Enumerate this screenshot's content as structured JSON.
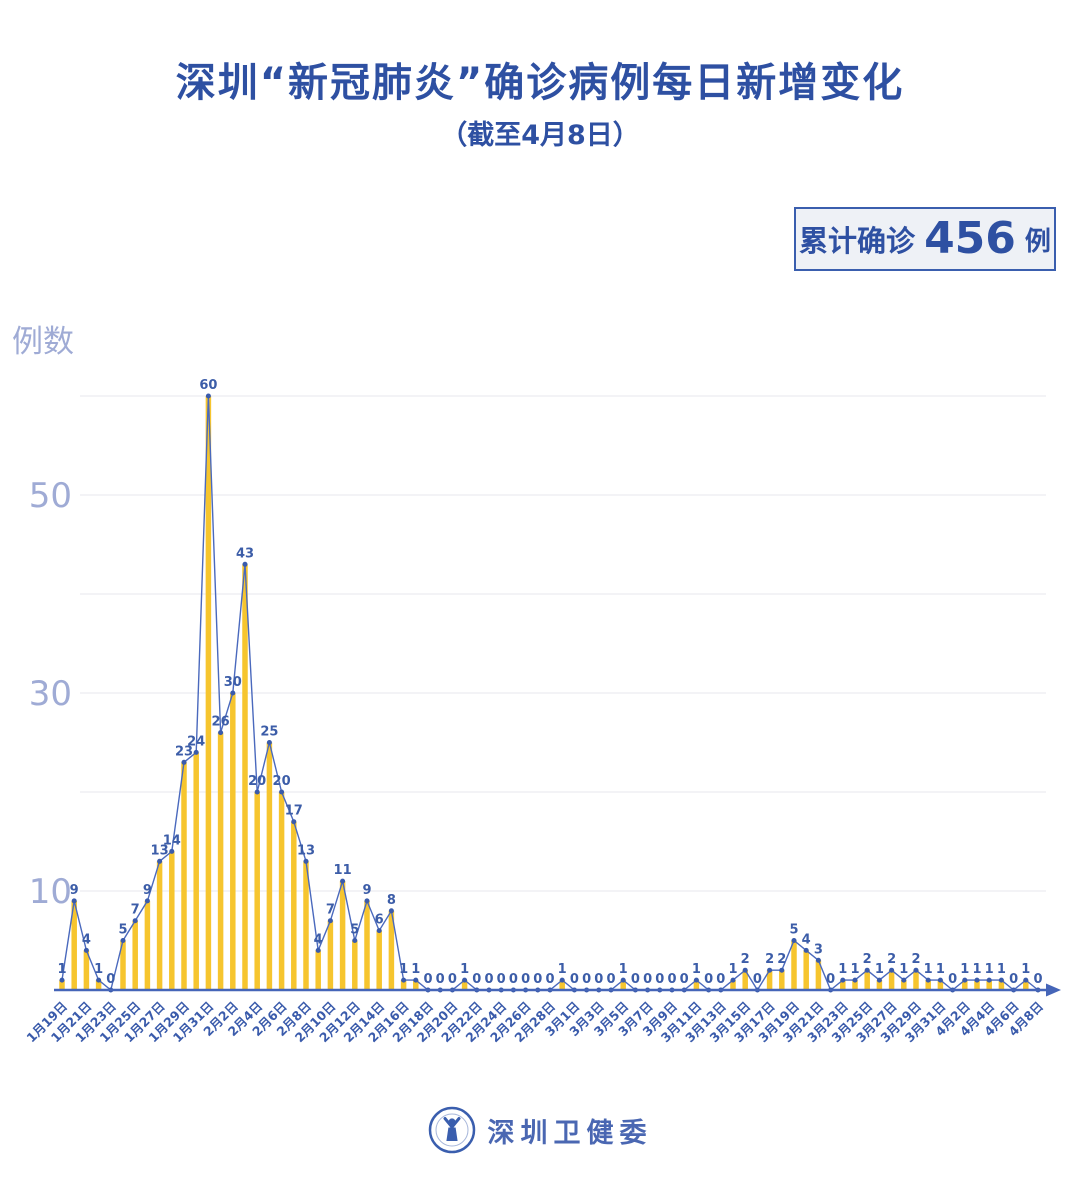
{
  "header": {
    "title": "深圳“新冠肺炎”确诊病例每日新增变化",
    "subtitle": "（截至4月8日）"
  },
  "badge": {
    "prefix": "累计确诊",
    "number": "456",
    "suffix": "例"
  },
  "footer": {
    "org": "深圳卫健委"
  },
  "chart_data": {
    "type": "bar",
    "overlay": "line",
    "title": "深圳“新冠肺炎”确诊病例每日新增变化",
    "subtitle": "（截至4月8日）",
    "cumulative_total": 456,
    "xlabel": "",
    "ylabel": "例数",
    "ylim": [
      0,
      62
    ],
    "ytick_labels": [
      10,
      30,
      50
    ],
    "gridlines": [
      10,
      20,
      30,
      40,
      50,
      60
    ],
    "xtick_label_every": 2,
    "grid": "on",
    "legend": "none",
    "categories": [
      "1月19日",
      "1月20日",
      "1月21日",
      "1月22日",
      "1月23日",
      "1月24日",
      "1月25日",
      "1月26日",
      "1月27日",
      "1月28日",
      "1月29日",
      "1月30日",
      "1月31日",
      "2月1日",
      "2月2日",
      "2月3日",
      "2月4日",
      "2月5日",
      "2月6日",
      "2月7日",
      "2月8日",
      "2月9日",
      "2月10日",
      "2月11日",
      "2月12日",
      "2月13日",
      "2月14日",
      "2月15日",
      "2月16日",
      "2月17日",
      "2月18日",
      "2月19日",
      "2月20日",
      "2月21日",
      "2月22日",
      "2月23日",
      "2月24日",
      "2月25日",
      "2月26日",
      "2月27日",
      "2月28日",
      "2月29日",
      "3月1日",
      "3月2日",
      "3月3日",
      "3月4日",
      "3月5日",
      "3月6日",
      "3月7日",
      "3月8日",
      "3月9日",
      "3月10日",
      "3月11日",
      "3月12日",
      "3月13日",
      "3月14日",
      "3月15日",
      "3月16日",
      "3月17日",
      "3月18日",
      "3月19日",
      "3月20日",
      "3月21日",
      "3月22日",
      "3月23日",
      "3月24日",
      "3月25日",
      "3月26日",
      "3月27日",
      "3月28日",
      "3月29日",
      "3月30日",
      "3月31日",
      "4月1日",
      "4月2日",
      "4月3日",
      "4月4日",
      "4月5日",
      "4月6日",
      "4月7日",
      "4月8日"
    ],
    "values": [
      1,
      9,
      4,
      1,
      0,
      5,
      7,
      9,
      13,
      14,
      23,
      24,
      60,
      26,
      30,
      43,
      20,
      25,
      20,
      17,
      13,
      4,
      7,
      11,
      5,
      9,
      6,
      8,
      1,
      1,
      0,
      0,
      0,
      1,
      0,
      0,
      0,
      0,
      0,
      0,
      0,
      1,
      0,
      0,
      0,
      0,
      1,
      0,
      0,
      0,
      0,
      0,
      1,
      0,
      0,
      1,
      2,
      0,
      2,
      2,
      5,
      4,
      3,
      0,
      1,
      1,
      2,
      1,
      2,
      1,
      2,
      1,
      1,
      0,
      1,
      1,
      1,
      1,
      0,
      1,
      0
    ],
    "colors": {
      "bar": "#F6C52E",
      "line": "#4A69BD",
      "dot": "#3A5BAB",
      "value_label": "#3C5DA8",
      "axis": "#4565B8",
      "ytick": "#9FABD5",
      "grid": "#ECECF1",
      "title": "#2E50A2"
    }
  }
}
